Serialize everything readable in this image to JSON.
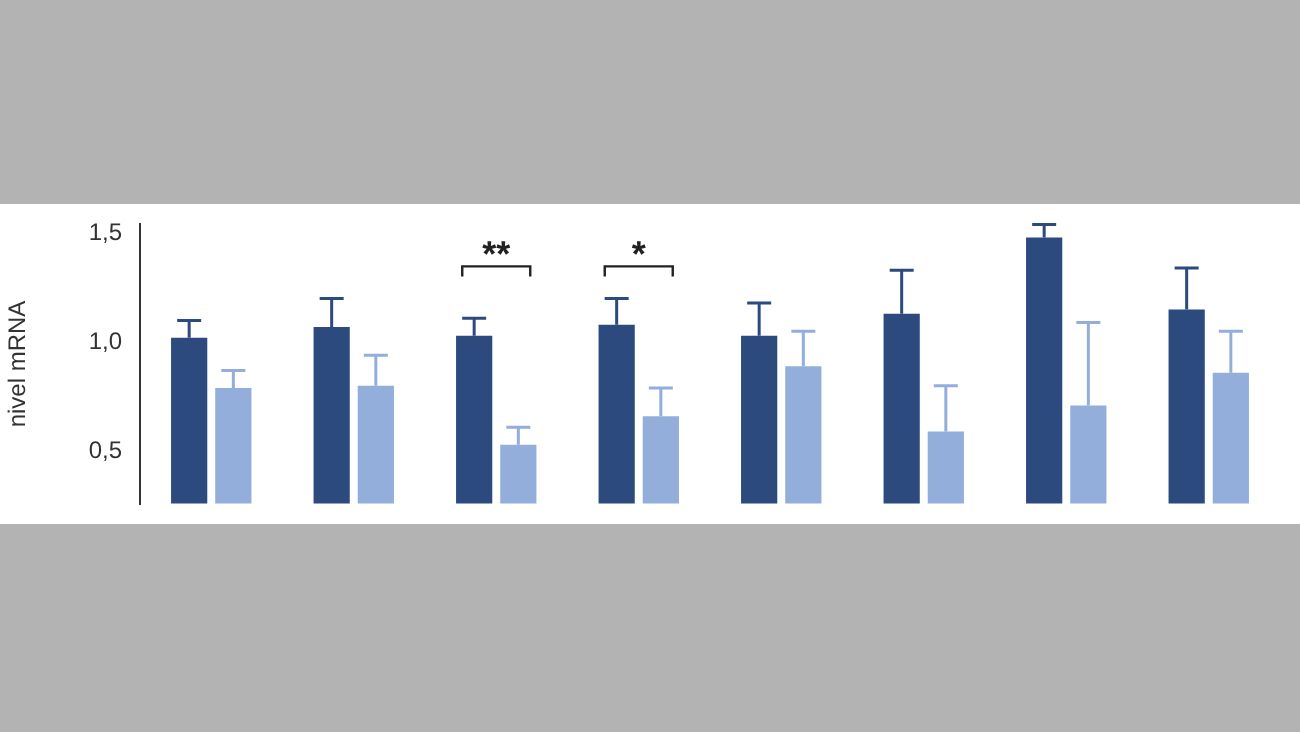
{
  "chart_data": {
    "type": "bar",
    "ylabel": "nivel mRNA",
    "categories": [
      null,
      null,
      null,
      null,
      null,
      null,
      null,
      null
    ],
    "series": [
      {
        "color": "#2c4a7e",
        "values": [
          1.02,
          1.07,
          1.03,
          1.08,
          1.03,
          1.13,
          1.48,
          1.15
        ],
        "errors": [
          [
            1.02,
            1.1
          ],
          [
            1.07,
            1.2
          ],
          [
            1.03,
            1.11
          ],
          [
            1.08,
            1.2
          ],
          [
            1.03,
            1.18
          ],
          [
            1.13,
            1.33
          ],
          [
            1.48,
            1.54
          ],
          [
            1.15,
            1.34
          ]
        ]
      },
      {
        "color": "#93aedb",
        "values": [
          0.79,
          0.8,
          0.53,
          0.66,
          0.89,
          0.59,
          0.71,
          0.86
        ],
        "errors": [
          [
            0.79,
            0.87
          ],
          [
            0.8,
            0.94
          ],
          [
            0.53,
            0.61
          ],
          [
            0.66,
            0.79
          ],
          [
            0.89,
            1.05
          ],
          [
            0.59,
            0.8
          ],
          [
            0.71,
            1.09
          ],
          [
            0.86,
            1.05
          ]
        ]
      }
    ],
    "ylim": [
      0.26,
      1.54
    ],
    "yticks": [
      {
        "value": 0.5,
        "label": "0,5"
      },
      {
        "value": 1.0,
        "label": "1,0"
      },
      {
        "value": 1.5,
        "label": "1,5"
      }
    ],
    "annotations": [
      "**",
      "*"
    ],
    "grid": false,
    "legend": false,
    "tick_labels": "y"
  }
}
